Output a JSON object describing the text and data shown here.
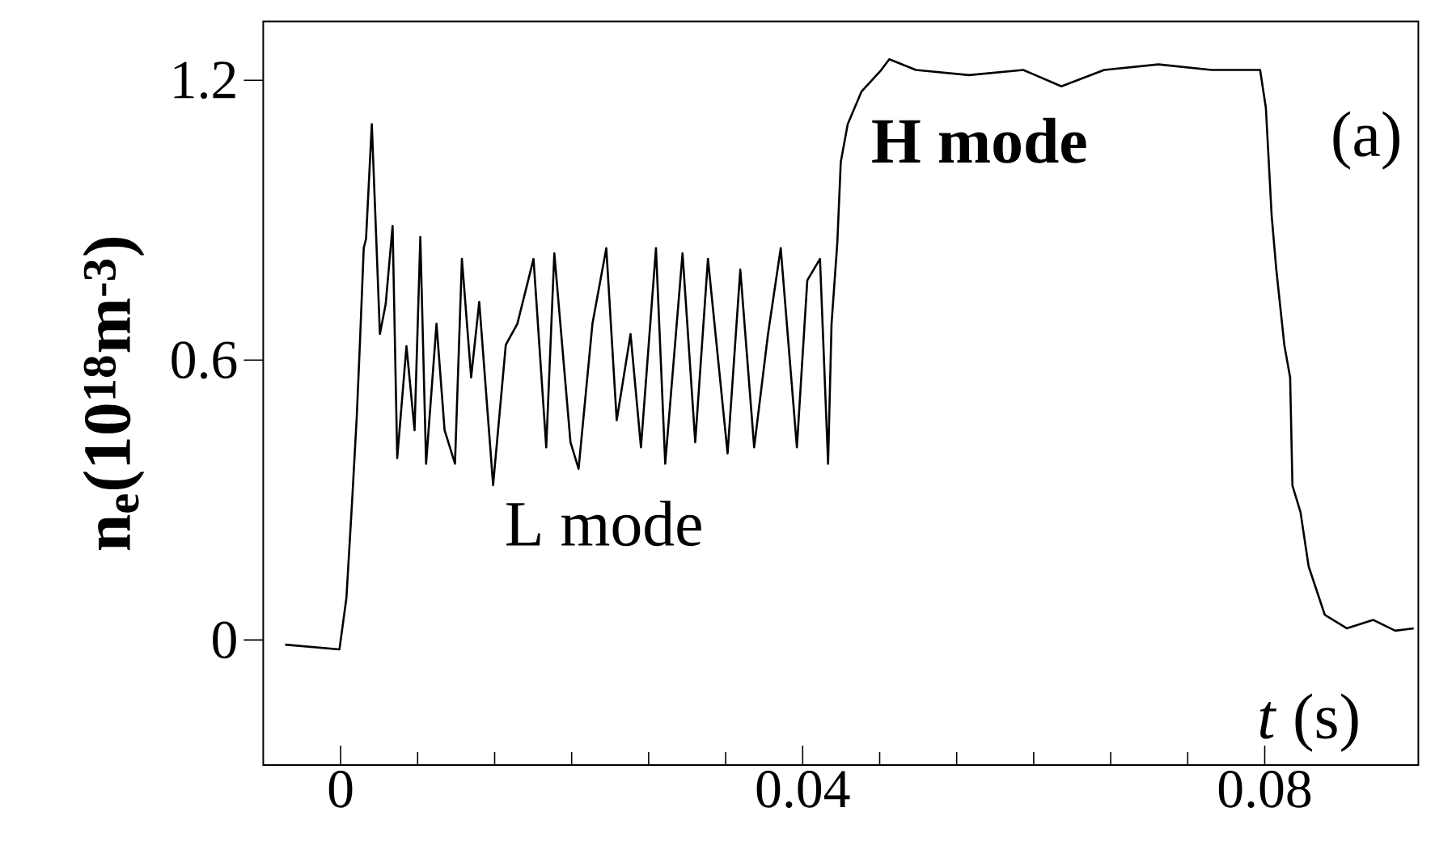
{
  "chart_data": {
    "type": "line",
    "xlabel": "*t* (s)",
    "ylabel": "n$_{e}$(10$^{18}$m$^{-3}$)",
    "annotations": [
      "L mode",
      "H mode",
      "(a)"
    ],
    "color": "#000000",
    "xlim": [
      -0.0067,
      0.0933
    ],
    "ylim": [
      -0.268,
      1.326
    ],
    "xticks": [
      0,
      0.04,
      0.08
    ],
    "yticks": [
      0,
      0.6,
      1.2
    ],
    "x": [
      -0.0048,
      -0.0001,
      0.0005,
      0.001,
      0.0014,
      0.0017,
      0.002,
      0.0022,
      0.0027,
      0.0031,
      0.0034,
      0.0039,
      0.0045,
      0.0049,
      0.0057,
      0.0064,
      0.0069,
      0.0074,
      0.0083,
      0.009,
      0.0099,
      0.0105,
      0.0113,
      0.012,
      0.0132,
      0.0143,
      0.0153,
      0.0167,
      0.0178,
      0.0185,
      0.0199,
      0.0206,
      0.0218,
      0.023,
      0.0239,
      0.0251,
      0.026,
      0.0273,
      0.0281,
      0.0296,
      0.0307,
      0.0318,
      0.0335,
      0.0346,
      0.0358,
      0.037,
      0.0381,
      0.0395,
      0.0404,
      0.0415,
      0.0422,
      0.0425,
      0.043,
      0.0433,
      0.0439,
      0.0451,
      0.0468,
      0.0475,
      0.0498,
      0.0544,
      0.0591,
      0.0624,
      0.0661,
      0.0708,
      0.0754,
      0.0796,
      0.0801,
      0.0806,
      0.081,
      0.0817,
      0.0822,
      0.0824,
      0.0831,
      0.0838,
      0.0852,
      0.0871,
      0.0894,
      0.0913,
      0.0929
    ],
    "values": [
      -0.01,
      -0.02,
      0.09,
      0.3,
      0.48,
      0.654,
      0.84,
      0.86,
      1.106,
      0.85,
      0.656,
      0.72,
      0.888,
      0.39,
      0.63,
      0.45,
      0.864,
      0.378,
      0.678,
      0.45,
      0.378,
      0.817,
      0.563,
      0.725,
      0.332,
      0.633,
      0.678,
      0.817,
      0.413,
      0.829,
      0.424,
      0.367,
      0.678,
      0.84,
      0.471,
      0.656,
      0.413,
      0.84,
      0.378,
      0.829,
      0.424,
      0.817,
      0.4,
      0.794,
      0.413,
      0.656,
      0.84,
      0.413,
      0.771,
      0.817,
      0.378,
      0.678,
      0.852,
      1.025,
      1.106,
      1.176,
      1.222,
      1.245,
      1.222,
      1.211,
      1.222,
      1.187,
      1.222,
      1.234,
      1.222,
      1.222,
      1.141,
      0.91,
      0.795,
      0.632,
      0.563,
      0.331,
      0.274,
      0.158,
      0.054,
      0.025,
      0.043,
      0.02,
      0.025
    ]
  }
}
